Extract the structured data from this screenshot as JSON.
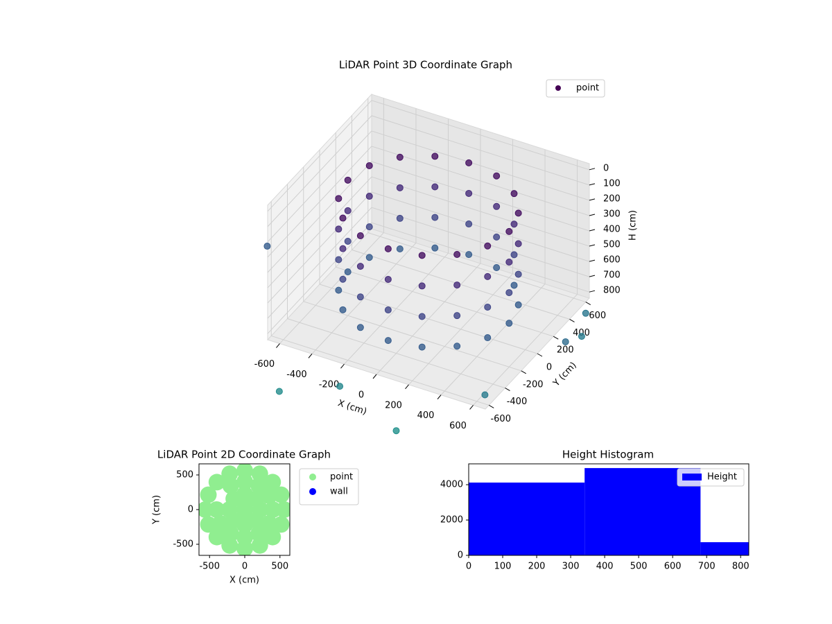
{
  "chart_data": [
    {
      "type": "scatter3d",
      "title": "LiDAR Point 3D Coordinate Graph",
      "xlabel": "X (cm)",
      "ylabel": "Y (cm)",
      "zlabel": "H (cm)",
      "xlim": [
        -675,
        675
      ],
      "ylim": [
        -645,
        645
      ],
      "zlim": [
        840,
        -40
      ],
      "xticks": [
        -600,
        -400,
        -200,
        0,
        200,
        400,
        600
      ],
      "yticks": [
        -600,
        -400,
        -200,
        0,
        200,
        400,
        600
      ],
      "zticks": [
        0,
        100,
        200,
        300,
        400,
        500,
        600,
        700,
        800
      ],
      "colormap": "viridis",
      "clim": [
        0,
        2400
      ],
      "grid": true,
      "legend": "upper right",
      "series": [
        {
          "name": "point",
          "color": "#440154",
          "x": [
            500,
            462,
            354,
            191,
            0,
            -191,
            -354,
            -462,
            -500,
            -462,
            -354,
            -191,
            0,
            191,
            354,
            462,
            500,
            462,
            354,
            191,
            0,
            -191,
            -354,
            -462,
            -500,
            -462,
            -354,
            -191,
            0,
            191,
            354,
            462,
            500,
            462,
            354,
            191,
            0,
            -191,
            -354,
            -462,
            -500,
            -462,
            -354,
            -191,
            0,
            191,
            354,
            462,
            500,
            462,
            354,
            191,
            0,
            -191,
            -354,
            -462,
            -500,
            -462,
            -354,
            -191,
            0,
            191,
            354,
            462,
            -1000,
            -300,
            100,
            500,
            700,
            750,
            650,
            -600
          ],
          "y": [
            0,
            191,
            354,
            462,
            500,
            462,
            354,
            191,
            0,
            -191,
            -354,
            -462,
            -500,
            -462,
            -354,
            -191,
            0,
            191,
            354,
            462,
            500,
            462,
            354,
            191,
            0,
            -191,
            -354,
            -462,
            -500,
            -462,
            -354,
            -191,
            0,
            191,
            354,
            462,
            500,
            462,
            354,
            191,
            0,
            -191,
            -354,
            -462,
            -500,
            -462,
            -354,
            -191,
            0,
            191,
            354,
            462,
            500,
            462,
            354,
            191,
            0,
            -191,
            -354,
            -462,
            -500,
            -462,
            -354,
            -191,
            0,
            -500,
            -600,
            -300,
            500,
            200,
            650,
            -650
          ],
          "z": [
            100,
            100,
            100,
            100,
            100,
            100,
            100,
            100,
            100,
            100,
            100,
            100,
            100,
            100,
            100,
            100,
            300,
            300,
            300,
            300,
            300,
            300,
            300,
            300,
            300,
            300,
            300,
            300,
            300,
            300,
            300,
            300,
            500,
            500,
            500,
            500,
            500,
            500,
            500,
            500,
            500,
            500,
            500,
            500,
            500,
            500,
            500,
            500,
            700,
            700,
            700,
            700,
            700,
            700,
            700,
            700,
            700,
            700,
            700,
            700,
            700,
            700,
            700,
            700,
            700,
            1100,
            1200,
            1000,
            1000,
            850,
            950,
            1150
          ]
        }
      ]
    },
    {
      "type": "scatter",
      "title": "LiDAR Point 2D Coordinate Graph",
      "xlabel": "X (cm)",
      "ylabel": "Y (cm)",
      "xlim": [
        -650,
        640
      ],
      "ylim": [
        -660,
        660
      ],
      "xticks": [
        -500,
        0,
        500
      ],
      "yticks": [
        -500,
        0,
        500
      ],
      "legend": "outside right",
      "series": [
        {
          "name": "point",
          "color": "#90ee90",
          "x": [
            560,
            517,
            396,
            214,
            0,
            -214,
            -396,
            -517,
            -560,
            -517,
            -396,
            -214,
            0,
            214,
            396,
            517,
            400,
            346,
            200,
            0,
            -200,
            -400,
            -346,
            -200,
            0,
            200,
            346,
            220,
            156,
            0,
            -156,
            -220,
            -156,
            0,
            156,
            0
          ],
          "y": [
            0,
            214,
            396,
            517,
            560,
            517,
            396,
            214,
            0,
            -214,
            -396,
            -517,
            -560,
            -517,
            -396,
            -214,
            0,
            200,
            346,
            400,
            346,
            0,
            -200,
            -346,
            -400,
            -346,
            -200,
            0,
            156,
            220,
            156,
            0,
            -156,
            -220,
            -156,
            0
          ]
        },
        {
          "name": "wall",
          "color": "#0000ff",
          "x": [],
          "y": []
        }
      ]
    },
    {
      "type": "histogram",
      "title": "Height Histogram",
      "bins": [
        0,
        341,
        682,
        1023
      ],
      "xlim": [
        0,
        824
      ],
      "ylim": [
        0,
        5180
      ],
      "xticks": [
        0,
        100,
        200,
        300,
        400,
        500,
        600,
        700,
        800
      ],
      "yticks": [
        0,
        2000,
        4000
      ],
      "legend": "upper right",
      "series": [
        {
          "name": "Height",
          "color": "#0000ff",
          "values": [
            4120,
            4940,
            745
          ]
        }
      ]
    }
  ]
}
